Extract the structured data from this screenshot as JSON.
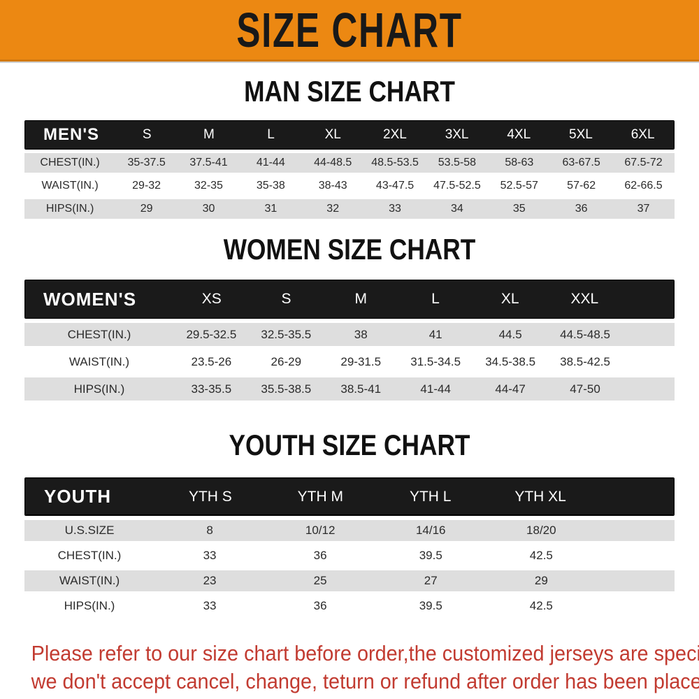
{
  "banner": {
    "title": "SIZE CHART"
  },
  "chart_data": [
    {
      "type": "table",
      "title": "MAN SIZE CHART",
      "header_label": "MEN'S",
      "columns": [
        "S",
        "M",
        "L",
        "XL",
        "2XL",
        "3XL",
        "4XL",
        "5XL",
        "6XL"
      ],
      "rows": [
        {
          "label": "CHEST(IN.)",
          "values": [
            "35-37.5",
            "37.5-41",
            "41-44",
            "44-48.5",
            "48.5-53.5",
            "53.5-58",
            "58-63",
            "63-67.5",
            "67.5-72"
          ]
        },
        {
          "label": "WAIST(IN.)",
          "values": [
            "29-32",
            "32-35",
            "35-38",
            "38-43",
            "43-47.5",
            "47.5-52.5",
            "52.5-57",
            "57-62",
            "62-66.5"
          ]
        },
        {
          "label": "HIPS(IN.)",
          "values": [
            "29",
            "30",
            "31",
            "32",
            "33",
            "34",
            "35",
            "36",
            "37"
          ]
        }
      ]
    },
    {
      "type": "table",
      "title": "WOMEN SIZE CHART",
      "header_label": "WOMEN'S",
      "columns": [
        "XS",
        "S",
        "M",
        "L",
        "XL",
        "XXL"
      ],
      "rows": [
        {
          "label": "CHEST(IN.)",
          "values": [
            "29.5-32.5",
            "32.5-35.5",
            "38",
            "41",
            "44.5",
            "44.5-48.5"
          ]
        },
        {
          "label": "WAIST(IN.)",
          "values": [
            "23.5-26",
            "26-29",
            "29-31.5",
            "31.5-34.5",
            "34.5-38.5",
            "38.5-42.5"
          ]
        },
        {
          "label": "HIPS(IN.)",
          "values": [
            "33-35.5",
            "35.5-38.5",
            "38.5-41",
            "41-44",
            "44-47",
            "47-50"
          ]
        }
      ]
    },
    {
      "type": "table",
      "title": "YOUTH SIZE CHART",
      "header_label": "YOUTH",
      "columns": [
        "YTH S",
        "YTH M",
        "YTH L",
        "YTH XL"
      ],
      "rows": [
        {
          "label": "U.S.SIZE",
          "values": [
            "8",
            "10/12",
            "14/16",
            "18/20"
          ]
        },
        {
          "label": "CHEST(IN.)",
          "values": [
            "33",
            "36",
            "39.5",
            "42.5"
          ]
        },
        {
          "label": "WAIST(IN.)",
          "values": [
            "23",
            "25",
            "27",
            "29"
          ]
        },
        {
          "label": "HIPS(IN.)",
          "values": [
            "33",
            "36",
            "39.5",
            "42.5"
          ]
        }
      ]
    }
  ],
  "footer": {
    "line1": "Please refer to our size chart before order,the customized jerseys are special products,",
    "line2": "we don't accept cancel, change, teturn or refund after order has been placed!"
  },
  "colors": {
    "banner_orange": "#EC8812",
    "header_black": "#1A1A1A",
    "row_gray": "#DEDEDE",
    "notice_red": "#C23B31",
    "title_black": "#111111"
  }
}
